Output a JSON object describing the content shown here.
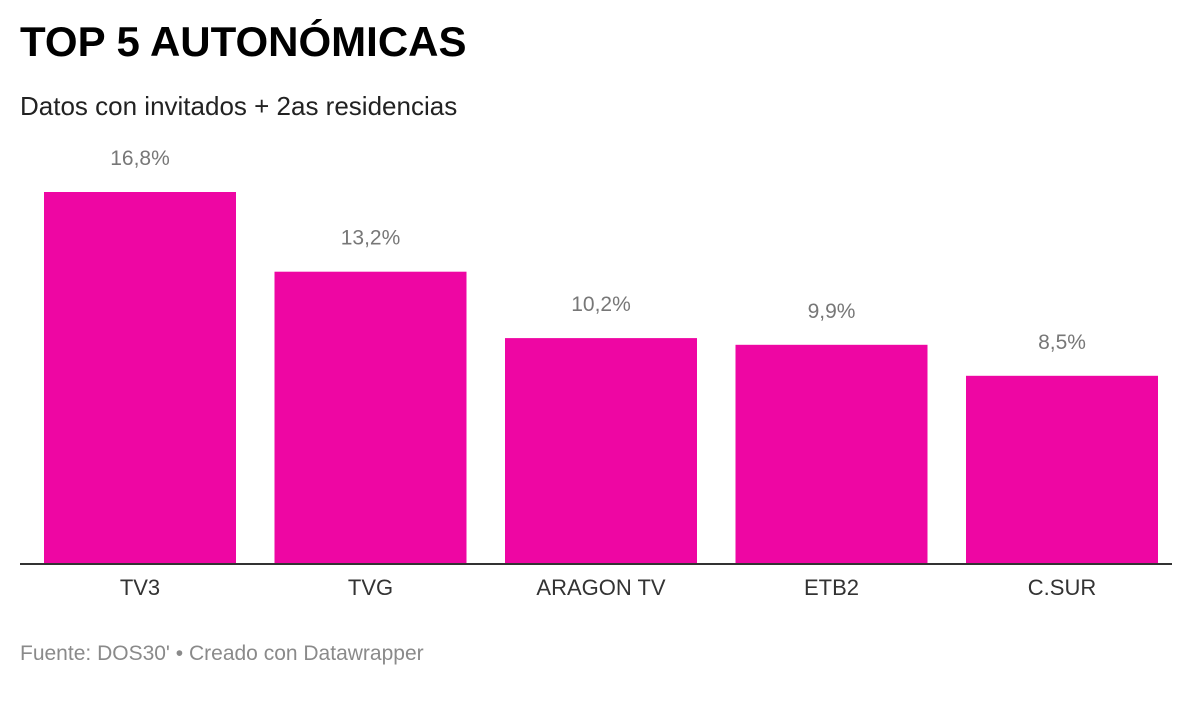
{
  "header": {
    "title": "TOP 5 AUTONÓMICAS",
    "subtitle": "Datos con invitados + 2as residencias"
  },
  "footer": {
    "source_label": "Fuente:",
    "source_value": "DOS30'",
    "separator": "•",
    "credit": "Creado con Datawrapper"
  },
  "colors": {
    "bar": "#ee06a3",
    "value_label": "#777777",
    "category_label": "#333333",
    "axis": "#333333"
  },
  "chart_data": {
    "type": "bar",
    "title": "TOP 5 AUTONÓMICAS",
    "subtitle": "Datos con invitados + 2as residencias",
    "categories": [
      "TV3",
      "TVG",
      "ARAGON TV",
      "ETB2",
      "C.SUR"
    ],
    "values": [
      16.8,
      13.2,
      10.2,
      9.9,
      8.5
    ],
    "value_labels": [
      "16,8%",
      "13,2%",
      "10,2%",
      "9,9%",
      "8,5%"
    ],
    "xlabel": "",
    "ylabel": "",
    "ylim": [
      0,
      16.8
    ],
    "grid": false,
    "legend": "none"
  }
}
